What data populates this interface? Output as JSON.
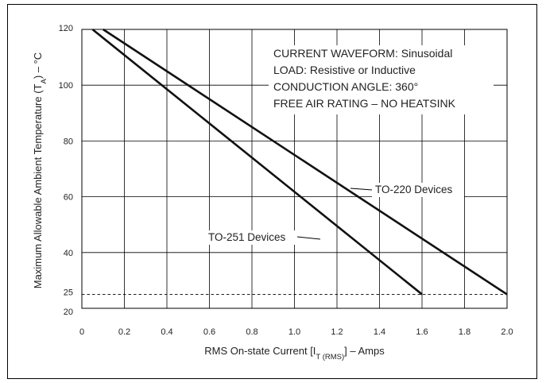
{
  "chart_data": {
    "type": "line",
    "title": "",
    "xlabel": {
      "main": "RMS On-state Current [I",
      "sub": "T (RMS)",
      "tail": "] – Amps"
    },
    "ylabel": {
      "main": "Maximum Allowable Ambient Temperature (T",
      "sub": "A",
      "tail": ") – °C"
    },
    "xlim": [
      0,
      2.0
    ],
    "ylim": [
      20,
      120
    ],
    "x_ticks": [
      {
        "value": 0,
        "label": "0"
      },
      {
        "value": 0.2,
        "label": "0.2"
      },
      {
        "value": 0.4,
        "label": "0.4"
      },
      {
        "value": 0.6,
        "label": "0.6"
      },
      {
        "value": 0.8,
        "label": "0.8"
      },
      {
        "value": 1.0,
        "label": "1.0"
      },
      {
        "value": 1.2,
        "label": "1.2"
      },
      {
        "value": 1.4,
        "label": "1.4"
      },
      {
        "value": 1.6,
        "label": "1.6"
      },
      {
        "value": 1.8,
        "label": "1.8"
      },
      {
        "value": 2.0,
        "label": "2.0"
      }
    ],
    "y_ticks": [
      {
        "value": 20,
        "label": "20"
      },
      {
        "value": 25,
        "label": "25"
      },
      {
        "value": 40,
        "label": "40"
      },
      {
        "value": 60,
        "label": "60"
      },
      {
        "value": 80,
        "label": "80"
      },
      {
        "value": 100,
        "label": "100"
      },
      {
        "value": 120,
        "label": "120"
      }
    ],
    "grid": true,
    "reference_line": {
      "y": 25,
      "style": "dashed"
    },
    "series": [
      {
        "name": "TO-251 Devices",
        "x": [
          0.05,
          1.6
        ],
        "y": [
          120,
          25
        ]
      },
      {
        "name": "TO-220 Devices",
        "x": [
          0.1,
          2.0
        ],
        "y": [
          120,
          25
        ]
      }
    ],
    "annotations": [
      "CURRENT WAVEFORM: Sinusoidal",
      "LOAD: Resistive or Inductive",
      "CONDUCTION ANGLE: 360°",
      "FREE AIR RATING – NO HEATSINK"
    ]
  }
}
